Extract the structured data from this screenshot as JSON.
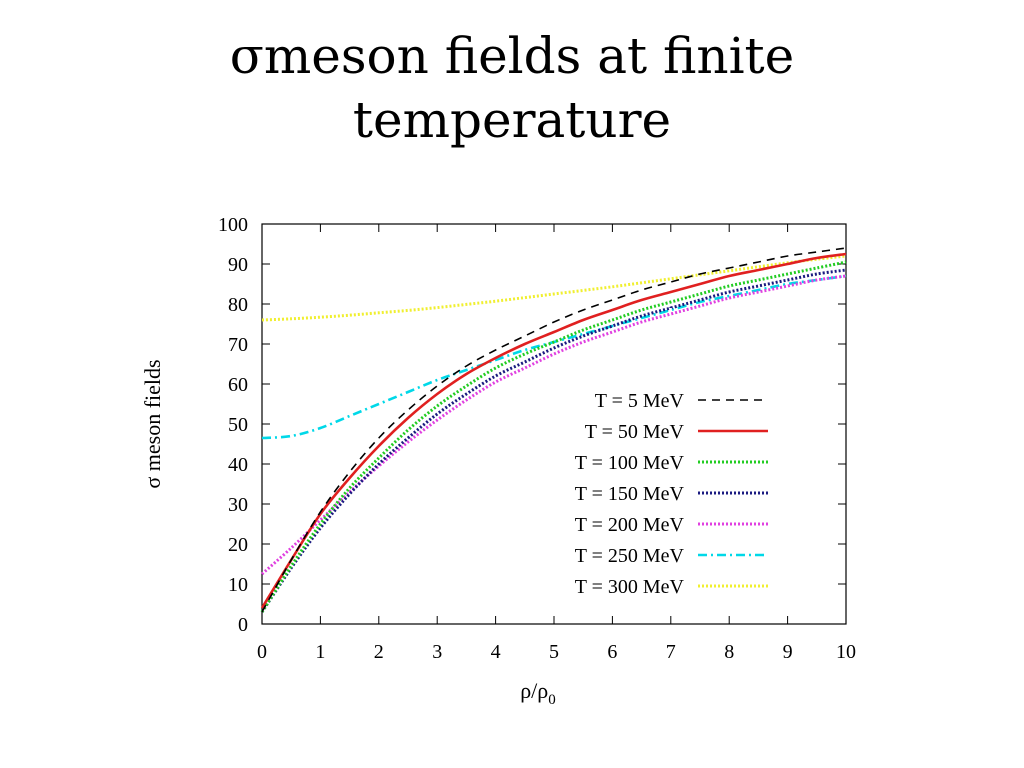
{
  "slide": {
    "title_line1": "σmeson fields at finite",
    "title_line2": "temperature"
  },
  "chart_data": {
    "type": "line",
    "title": "",
    "xlabel": "ρ/ρ",
    "xlabel_sub": "0",
    "ylabel": "σ meson fields",
    "xlim": [
      0,
      10
    ],
    "ylim": [
      0,
      100
    ],
    "xticks": [
      "0",
      "1",
      "2",
      "3",
      "4",
      "5",
      "6",
      "7",
      "8",
      "9",
      "10"
    ],
    "yticks": [
      "0",
      "10",
      "20",
      "30",
      "40",
      "50",
      "60",
      "70",
      "80",
      "90",
      "100"
    ],
    "grid": false,
    "legend_position": "lower-right",
    "series": [
      {
        "name": "T = 5 MeV",
        "color": "#000000",
        "dash": "dashed",
        "x": [
          0,
          0.5,
          1,
          1.5,
          2,
          2.5,
          3,
          3.5,
          4,
          4.5,
          5,
          5.5,
          6,
          6.5,
          7,
          7.5,
          8,
          8.5,
          9,
          9.5,
          10
        ],
        "y": [
          3,
          16,
          28,
          38,
          46.5,
          53.5,
          59.5,
          64.5,
          68.5,
          72,
          75.5,
          78.5,
          81,
          83.5,
          85.5,
          87.5,
          89,
          90.5,
          92,
          93,
          94
        ]
      },
      {
        "name": "T = 50 MeV",
        "color": "#e02020",
        "dash": "solid",
        "x": [
          0,
          0.5,
          1,
          1.5,
          2,
          2.5,
          3,
          3.5,
          4,
          4.5,
          5,
          5.5,
          6,
          6.5,
          7,
          7.5,
          8,
          8.5,
          9,
          9.5,
          10
        ],
        "y": [
          4,
          16,
          27.5,
          36.5,
          44.5,
          51.5,
          57.5,
          62.5,
          66.5,
          70,
          73,
          76,
          78.5,
          81,
          83,
          85,
          87,
          88.5,
          90,
          91.5,
          92.5
        ]
      },
      {
        "name": "T = 100 MeV",
        "color": "#22cc22",
        "dash": "dotted",
        "x": [
          0,
          0.5,
          1,
          1.5,
          2,
          2.5,
          3,
          3.5,
          4,
          4.5,
          5,
          5.5,
          6,
          6.5,
          7,
          7.5,
          8,
          8.5,
          9,
          9.5,
          10
        ],
        "y": [
          3,
          14.5,
          25,
          34,
          41.5,
          48.5,
          54.5,
          59.5,
          64,
          67.5,
          70.5,
          73.5,
          76,
          78.5,
          80.5,
          82.5,
          84.5,
          86,
          87.5,
          89,
          90.5
        ]
      },
      {
        "name": "T = 150 MeV",
        "color": "#1a1a80",
        "dash": "dotted",
        "x": [
          0,
          0.5,
          1,
          1.5,
          2,
          2.5,
          3,
          3.5,
          4,
          4.5,
          5,
          5.5,
          6,
          6.5,
          7,
          7.5,
          8,
          8.5,
          9,
          9.5,
          10
        ],
        "y": [
          3,
          14,
          24,
          32.5,
          40,
          46.5,
          52.5,
          57.5,
          62,
          65.5,
          69,
          72,
          74.5,
          77,
          79,
          81,
          83,
          84.5,
          86,
          87.5,
          88.5
        ]
      },
      {
        "name": "T = 200 MeV",
        "color": "#e040e0",
        "dash": "dotted",
        "x": [
          0,
          0.5,
          1,
          1.5,
          2,
          2.5,
          3,
          3.5,
          4,
          4.5,
          5,
          5.5,
          6,
          6.5,
          7,
          7.5,
          8,
          8.5,
          9,
          9.5,
          10
        ],
        "y": [
          12.5,
          19,
          26,
          33,
          39.5,
          45.5,
          51,
          56,
          60.5,
          64,
          67.5,
          70.5,
          73,
          75.5,
          77.5,
          79.5,
          81.5,
          83,
          84.5,
          86,
          87
        ]
      },
      {
        "name": "T = 250 MeV",
        "color": "#00d8e8",
        "dash": "dashdot",
        "x": [
          0,
          0.5,
          1,
          1.5,
          2,
          2.5,
          3,
          3.5,
          4,
          4.5,
          5,
          5.5,
          6,
          6.5,
          7,
          7.5,
          8,
          8.5,
          9,
          9.5,
          10
        ],
        "y": [
          46.5,
          47,
          49,
          52,
          55,
          58,
          61,
          63.5,
          66,
          68.5,
          70.5,
          72.5,
          74.5,
          76.5,
          78.5,
          80.5,
          82,
          83.5,
          85,
          86,
          87
        ]
      },
      {
        "name": "T = 300 MeV",
        "color": "#f0ef30",
        "dash": "dotted",
        "x": [
          0,
          0.5,
          1,
          1.5,
          2,
          2.5,
          3,
          3.5,
          4,
          4.5,
          5,
          5.5,
          6,
          6.5,
          7,
          7.5,
          8,
          8.5,
          9,
          9.5,
          10
        ],
        "y": [
          76,
          76.3,
          76.7,
          77.2,
          77.8,
          78.4,
          79.1,
          79.9,
          80.7,
          81.6,
          82.5,
          83.4,
          84.3,
          85.3,
          86.3,
          87.3,
          88.3,
          89.3,
          90.3,
          91.2,
          92
        ]
      }
    ]
  }
}
